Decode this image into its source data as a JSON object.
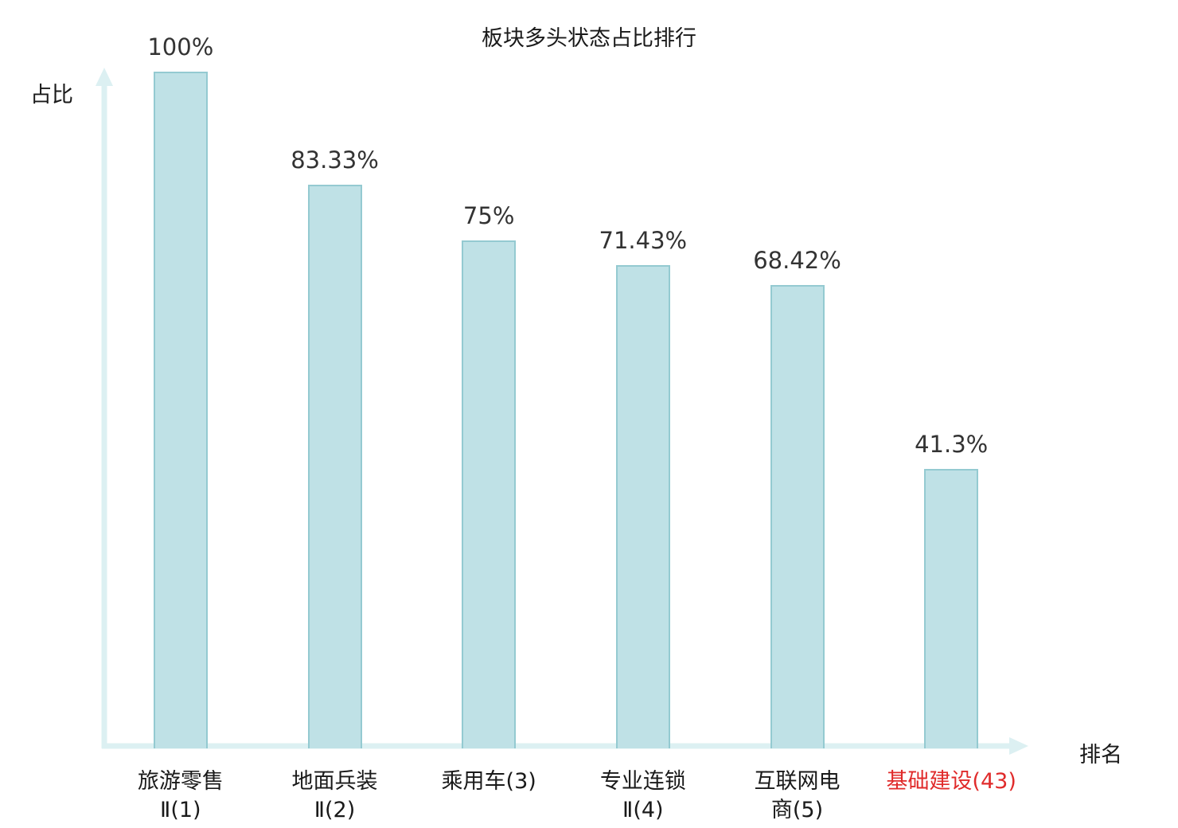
{
  "chart_data": {
    "type": "bar",
    "title": "板块多头状态占比排行",
    "ylabel": "占比",
    "xlabel": "排名",
    "categories": [
      "旅游零售Ⅱ(1)",
      "地面兵装Ⅱ(2)",
      "乘用车(3)",
      "专业连锁Ⅱ(4)",
      "互联网电商(5)",
      "基础建设(43)"
    ],
    "values": [
      100,
      83.33,
      75,
      71.43,
      68.42,
      41.3
    ],
    "value_labels": [
      "100%",
      "83.33%",
      "75%",
      "71.43%",
      "68.42%",
      "41.3%"
    ],
    "category_label_lines": [
      [
        "旅游零售",
        "Ⅱ(1)"
      ],
      [
        "地面兵装",
        "Ⅱ(2)"
      ],
      [
        "乘用车(3)"
      ],
      [
        "专业连锁",
        "Ⅱ(4)"
      ],
      [
        "互联网电",
        "商(5)"
      ],
      [
        "基础建设(43)"
      ]
    ],
    "highlight_index": 5,
    "ylim": [
      0,
      100
    ],
    "legend": "none",
    "grid": false,
    "colors": {
      "bar_fill": "#bfe1e6",
      "bar_border": "#94cad1",
      "axis": "#dcf0f2",
      "value_label": "#333333",
      "category_label": "#1a1a1a",
      "highlight_label": "#e02b2b",
      "title": "#1a1a1a"
    }
  }
}
